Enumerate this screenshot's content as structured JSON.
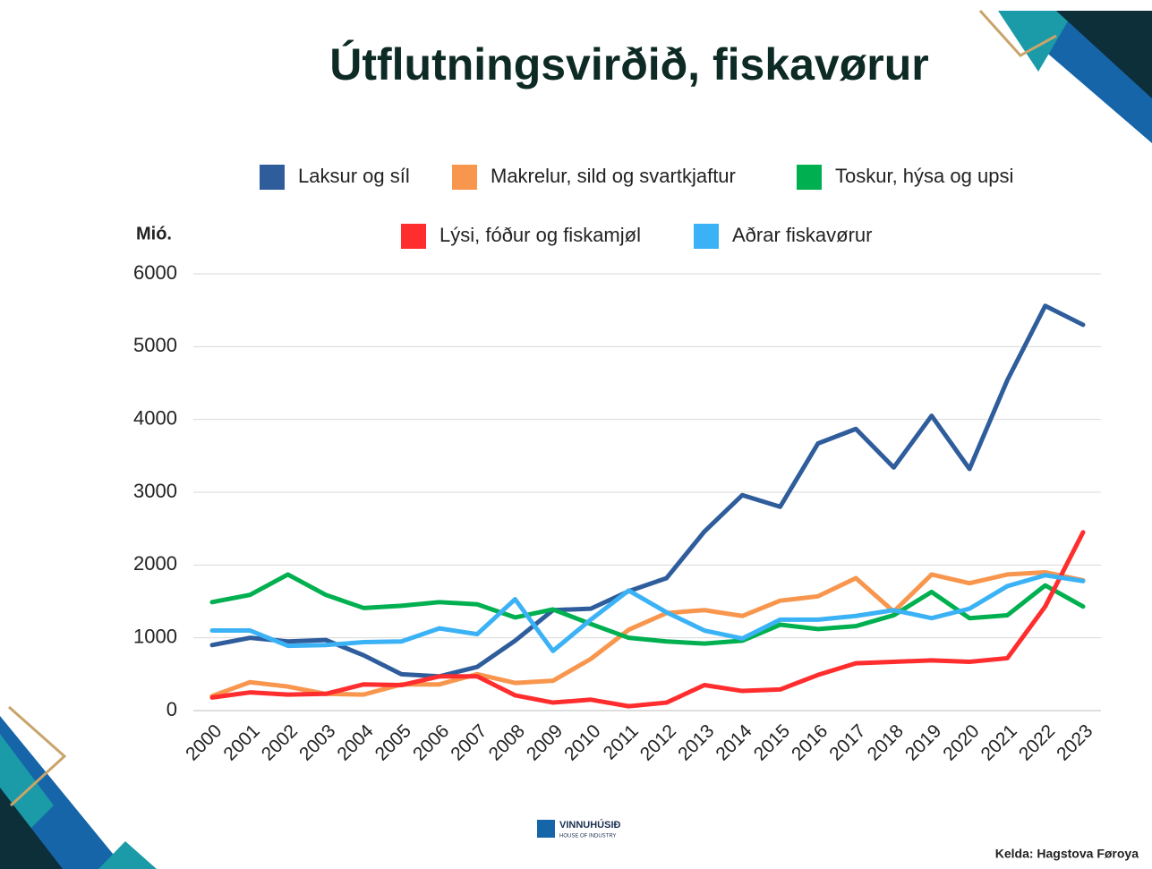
{
  "chart_data": {
    "type": "line",
    "title": "Útflutningsvirðið, fiskavørur",
    "y_label": "Mió.",
    "source": "Kelda: Hagstova Føroya",
    "logo": {
      "name": "VINNUHÚSIÐ",
      "tagline": "HOUSE OF INDUSTRY"
    },
    "categories": [
      "2000",
      "2001",
      "2002",
      "2003",
      "2004",
      "2005",
      "2006",
      "2007",
      "2008",
      "2009",
      "2010",
      "2011",
      "2012",
      "2013",
      "2014",
      "2015",
      "2016",
      "2017",
      "2018",
      "2019",
      "2020",
      "2021",
      "2022",
      "2023"
    ],
    "ylim": [
      0,
      6000
    ],
    "yticks": [
      0,
      1000,
      2000,
      3000,
      4000,
      5000,
      6000
    ],
    "grid": true,
    "legend": "top",
    "series": [
      {
        "name": "Laksur og síl",
        "color": "#2f5d9c",
        "values": [
          900,
          1000,
          950,
          970,
          760,
          500,
          470,
          600,
          960,
          1380,
          1400,
          1640,
          1820,
          2460,
          2960,
          2800,
          3670,
          3870,
          3340,
          4050,
          3320,
          4540,
          5560,
          5300
        ]
      },
      {
        "name": "Makrelur, sild og svartkjaftur",
        "color": "#f8964d",
        "values": [
          200,
          390,
          330,
          230,
          220,
          360,
          360,
          500,
          380,
          410,
          710,
          1110,
          1340,
          1380,
          1300,
          1510,
          1570,
          1820,
          1360,
          1870,
          1750,
          1870,
          1900,
          1790
        ]
      },
      {
        "name": "Toskur, hýsa og upsi",
        "color": "#00b050",
        "values": [
          1490,
          1590,
          1870,
          1590,
          1410,
          1440,
          1490,
          1460,
          1280,
          1390,
          1190,
          1000,
          950,
          920,
          960,
          1180,
          1120,
          1160,
          1310,
          1630,
          1270,
          1310,
          1720,
          1430
        ]
      },
      {
        "name": "Lýsi, fóður og fiskamjøl",
        "color": "#ff2d2d",
        "values": [
          180,
          250,
          220,
          230,
          360,
          350,
          470,
          470,
          210,
          110,
          150,
          60,
          110,
          350,
          270,
          290,
          490,
          650,
          670,
          690,
          670,
          720,
          1430,
          2450
        ]
      },
      {
        "name": "Aðrar fiskavørur",
        "color": "#3bb2f5",
        "values": [
          1100,
          1100,
          890,
          900,
          940,
          950,
          1130,
          1050,
          1530,
          820,
          1250,
          1650,
          1350,
          1100,
          990,
          1250,
          1250,
          1300,
          1380,
          1270,
          1400,
          1710,
          1860,
          1780
        ]
      }
    ]
  }
}
